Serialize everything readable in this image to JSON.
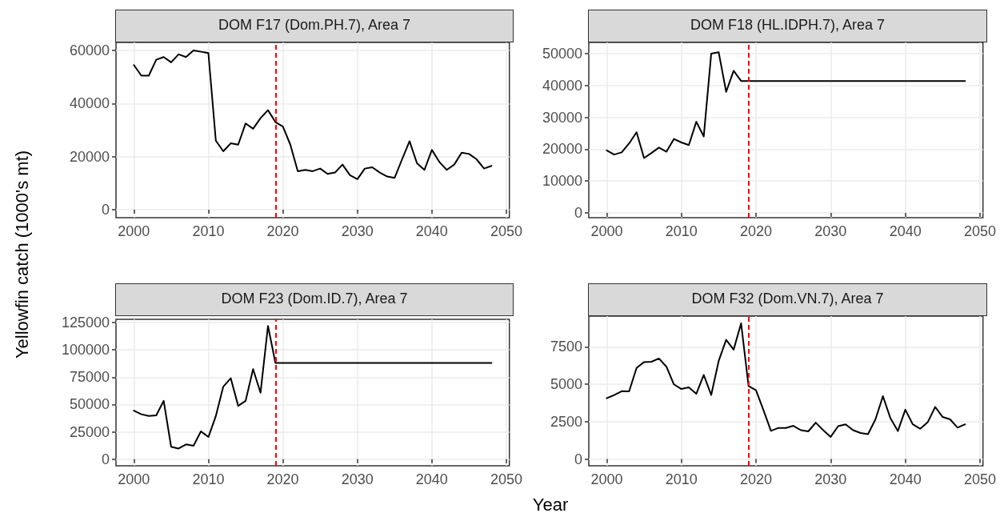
{
  "chart_data": [
    {
      "type": "line",
      "title": "DOM F17 (Dom.PH.7), Area 7",
      "xlabel": "Year",
      "ylabel": "Yellowfin catch (1000's mt)",
      "x": [
        2000,
        2001,
        2002,
        2003,
        2004,
        2005,
        2006,
        2007,
        2008,
        2009,
        2010,
        2011,
        2012,
        2013,
        2014,
        2015,
        2016,
        2017,
        2018,
        2019,
        2020,
        2021,
        2022,
        2023,
        2024,
        2025,
        2026,
        2027,
        2028,
        2029,
        2030,
        2031,
        2032,
        2033,
        2034,
        2035,
        2036,
        2037,
        2038,
        2039,
        2040,
        2041,
        2042,
        2043,
        2044,
        2045,
        2046,
        2047,
        2048
      ],
      "series": [
        {
          "color": "#000000",
          "values": [
            54500,
            50500,
            50500,
            56500,
            57500,
            55500,
            58500,
            57500,
            60000,
            59500,
            59000,
            26000,
            22000,
            25000,
            24500,
            32500,
            30500,
            34500,
            37500,
            33000,
            31300,
            24500,
            14500,
            15000,
            14500,
            15500,
            13500,
            14000,
            17000,
            13000,
            11500,
            15500,
            16000,
            14000,
            12500,
            12000,
            19000,
            25800,
            17500,
            15000,
            22500,
            18000,
            15000,
            17000,
            21500,
            21000,
            19000,
            15500,
            16500
          ]
        }
      ],
      "xlim": [
        1997.6,
        2050.4
      ],
      "xticks": [
        2000,
        2010,
        2020,
        2030,
        2040,
        2050
      ],
      "ylim": [
        -3000,
        63000
      ],
      "yticks": [
        0,
        20000,
        40000,
        60000
      ],
      "grid": true,
      "line_style": "solid",
      "marker": "none",
      "ref_lines": [
        {
          "axis": "x",
          "value": 2019,
          "color": "#ff0000",
          "line_style": "dashed"
        }
      ]
    },
    {
      "type": "line",
      "title": "DOM F18 (HL.IDPH.7), Area 7",
      "x": [
        2000,
        2001,
        2002,
        2003,
        2004,
        2005,
        2006,
        2007,
        2008,
        2009,
        2010,
        2011,
        2012,
        2013,
        2014,
        2015,
        2016,
        2017,
        2018,
        2019,
        2020,
        2021,
        2022,
        2023,
        2024,
        2025,
        2026,
        2027,
        2028,
        2029,
        2030,
        2031,
        2032,
        2033,
        2034,
        2035,
        2036,
        2037,
        2038,
        2039,
        2040,
        2041,
        2042,
        2043,
        2044,
        2045,
        2046,
        2047,
        2048
      ],
      "series": [
        {
          "color": "#000000",
          "values": [
            19600,
            18300,
            19000,
            21800,
            25300,
            17200,
            18800,
            20500,
            19200,
            23200,
            22100,
            21300,
            28600,
            24000,
            50000,
            50400,
            38000,
            44600,
            41400,
            41400,
            41400,
            41400,
            41400,
            41400,
            41400,
            41400,
            41400,
            41400,
            41400,
            41400,
            41400,
            41400,
            41400,
            41400,
            41400,
            41400,
            41400,
            41400,
            41400,
            41400,
            41400,
            41400,
            41400,
            41400,
            41400,
            41400,
            41400,
            41400,
            41400
          ]
        }
      ],
      "xlim": [
        1997.6,
        2050.4
      ],
      "xticks": [
        2000,
        2010,
        2020,
        2030,
        2040,
        2050
      ],
      "ylim": [
        -1500,
        53500
      ],
      "yticks": [
        0,
        10000,
        20000,
        30000,
        40000,
        50000
      ],
      "grid": true,
      "line_style": "solid",
      "marker": "none",
      "ref_lines": [
        {
          "axis": "x",
          "value": 2019,
          "color": "#ff0000",
          "line_style": "dashed"
        }
      ]
    },
    {
      "type": "line",
      "title": "DOM F23 (Dom.ID.7), Area 7",
      "x": [
        2000,
        2001,
        2002,
        2003,
        2004,
        2005,
        2006,
        2007,
        2008,
        2009,
        2010,
        2011,
        2012,
        2013,
        2014,
        2015,
        2016,
        2017,
        2018,
        2019,
        2020,
        2021,
        2022,
        2023,
        2024,
        2025,
        2026,
        2027,
        2028,
        2029,
        2030,
        2031,
        2032,
        2033,
        2034,
        2035,
        2036,
        2037,
        2038,
        2039,
        2040,
        2041,
        2042,
        2043,
        2044,
        2045,
        2046,
        2047,
        2048
      ],
      "series": [
        {
          "color": "#000000",
          "values": [
            44400,
            41100,
            39500,
            40100,
            53400,
            11400,
            9800,
            13500,
            12300,
            25500,
            20300,
            39500,
            66400,
            74100,
            48800,
            53400,
            82400,
            60800,
            121900,
            88000,
            88000,
            88000,
            88000,
            88000,
            88000,
            88000,
            88000,
            88000,
            88000,
            88000,
            88000,
            88000,
            88000,
            88000,
            88000,
            88000,
            88000,
            88000,
            88000,
            88000,
            88000,
            88000,
            88000,
            88000,
            88000,
            88000,
            88000,
            88000,
            88000
          ]
        }
      ],
      "xlim": [
        1997.6,
        2050.4
      ],
      "xticks": [
        2000,
        2010,
        2020,
        2030,
        2040,
        2050
      ],
      "ylim": [
        -6000,
        128000
      ],
      "yticks": [
        0,
        25000,
        50000,
        75000,
        100000,
        125000
      ],
      "grid": true,
      "line_style": "solid",
      "marker": "none",
      "ref_lines": [
        {
          "axis": "x",
          "value": 2019,
          "color": "#ff0000",
          "line_style": "dashed"
        }
      ]
    },
    {
      "type": "line",
      "title": "DOM F32 (Dom.VN.7), Area 7",
      "x": [
        2000,
        2001,
        2002,
        2003,
        2004,
        2005,
        2006,
        2007,
        2008,
        2009,
        2010,
        2011,
        2012,
        2013,
        2014,
        2015,
        2016,
        2017,
        2018,
        2019,
        2020,
        2021,
        2022,
        2023,
        2024,
        2025,
        2026,
        2027,
        2028,
        2029,
        2030,
        2031,
        2032,
        2033,
        2034,
        2035,
        2036,
        2037,
        2038,
        2039,
        2040,
        2041,
        2042,
        2043,
        2044,
        2045,
        2046,
        2047,
        2048
      ],
      "series": [
        {
          "color": "#000000",
          "values": [
            4060,
            4280,
            4530,
            4520,
            6090,
            6480,
            6500,
            6720,
            6170,
            4990,
            4680,
            4790,
            4360,
            5620,
            4280,
            6560,
            7970,
            7310,
            9070,
            4880,
            4600,
            3260,
            1880,
            2080,
            2080,
            2220,
            1930,
            1850,
            2430,
            1930,
            1480,
            2200,
            2320,
            1930,
            1740,
            1660,
            2650,
            4200,
            2730,
            1870,
            3300,
            2320,
            2020,
            2460,
            3480,
            2810,
            2650,
            2100,
            2320
          ]
        }
      ],
      "xlim": [
        1997.6,
        2050.4
      ],
      "xticks": [
        2000,
        2010,
        2020,
        2030,
        2040,
        2050
      ],
      "ylim": [
        -450,
        9550
      ],
      "yticks": [
        0,
        2500,
        5000,
        7500
      ],
      "grid": true,
      "line_style": "solid",
      "marker": "none",
      "ref_lines": [
        {
          "axis": "x",
          "value": 2019,
          "color": "#ff0000",
          "line_style": "dashed"
        }
      ]
    }
  ]
}
